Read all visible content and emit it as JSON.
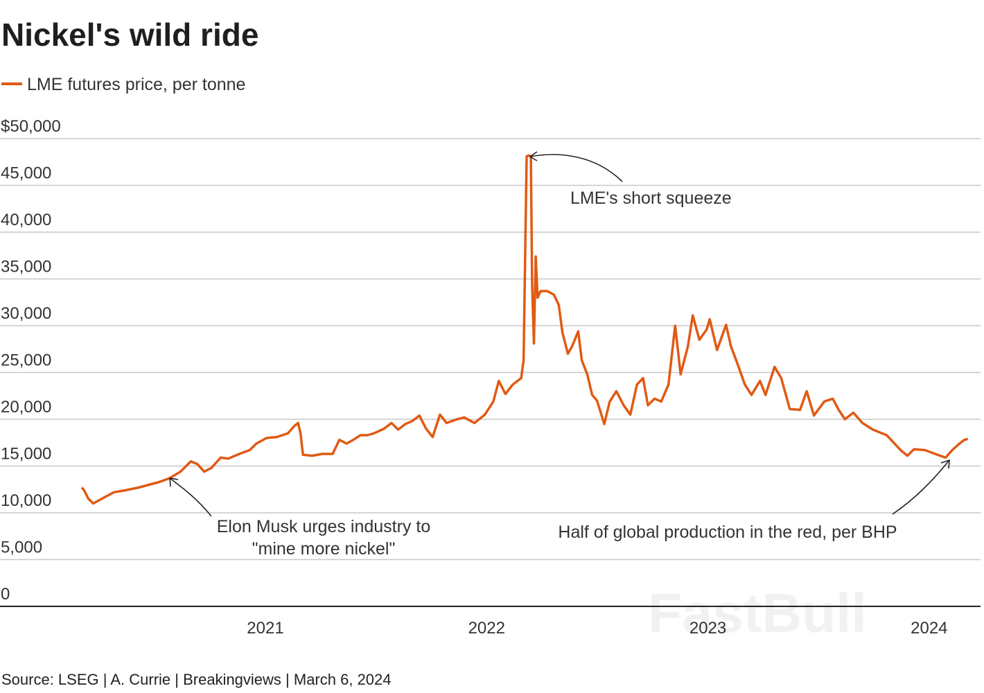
{
  "title": "Nickel's wild ride",
  "source": "Source: LSEG | A. Currie | Breakingviews | March 6, 2024",
  "watermark": "FastBull",
  "colors": {
    "series": "#e05a14",
    "grid": "#c8c8c8",
    "baseline": "#222222"
  },
  "chart_data": {
    "type": "line",
    "title": "Nickel's wild ride",
    "xlabel": "",
    "ylabel": "",
    "ylim": [
      0,
      50000
    ],
    "xlim": [
      "2020-03-01",
      "2024-03-06"
    ],
    "grid": true,
    "legend_placement": "top-left",
    "y_ticks": [
      "$50,000",
      "45,000",
      "40,000",
      "35,000",
      "30,000",
      "25,000",
      "20,000",
      "15,000",
      "10,000",
      "5,000",
      "0"
    ],
    "y_tick_values": [
      50000,
      45000,
      40000,
      35000,
      30000,
      25000,
      20000,
      15000,
      10000,
      5000,
      0
    ],
    "x_ticks": [
      "2021",
      "2022",
      "2023",
      "2024"
    ],
    "series": [
      {
        "name": "LME futures price, per tonne",
        "points": [
          [
            "2020-03-04",
            12700
          ],
          [
            "2020-03-08",
            12400
          ],
          [
            "2020-03-15",
            11500
          ],
          [
            "2020-03-23",
            11000
          ],
          [
            "2020-04-09",
            11600
          ],
          [
            "2020-04-26",
            12200
          ],
          [
            "2020-05-14",
            12400
          ],
          [
            "2020-06-06",
            12700
          ],
          [
            "2020-06-23",
            13000
          ],
          [
            "2020-07-10",
            13300
          ],
          [
            "2020-07-27",
            13700
          ],
          [
            "2020-08-14",
            14400
          ],
          [
            "2020-08-31",
            15500
          ],
          [
            "2020-09-11",
            15200
          ],
          [
            "2020-09-22",
            14400
          ],
          [
            "2020-10-04",
            14800
          ],
          [
            "2020-10-19",
            15900
          ],
          [
            "2020-11-01",
            15800
          ],
          [
            "2020-11-19",
            16300
          ],
          [
            "2020-12-06",
            16700
          ],
          [
            "2020-12-17",
            17400
          ],
          [
            "2021-01-03",
            18000
          ],
          [
            "2021-01-20",
            18100
          ],
          [
            "2021-02-07",
            18500
          ],
          [
            "2021-02-18",
            19300
          ],
          [
            "2021-02-24",
            19600
          ],
          [
            "2021-02-28",
            18500
          ],
          [
            "2021-03-04",
            16200
          ],
          [
            "2021-03-19",
            16100
          ],
          [
            "2021-04-05",
            16300
          ],
          [
            "2021-04-22",
            16300
          ],
          [
            "2021-05-03",
            17800
          ],
          [
            "2021-05-15",
            17400
          ],
          [
            "2021-05-26",
            17800
          ],
          [
            "2021-06-07",
            18300
          ],
          [
            "2021-06-18",
            18300
          ],
          [
            "2021-06-29",
            18500
          ],
          [
            "2021-07-16",
            19000
          ],
          [
            "2021-07-28",
            19600
          ],
          [
            "2021-08-08",
            18900
          ],
          [
            "2021-08-20",
            19500
          ],
          [
            "2021-08-31",
            19800
          ],
          [
            "2021-09-12",
            20400
          ],
          [
            "2021-09-23",
            19000
          ],
          [
            "2021-10-04",
            18100
          ],
          [
            "2021-10-16",
            20500
          ],
          [
            "2021-10-27",
            19600
          ],
          [
            "2021-11-13",
            20000
          ],
          [
            "2021-11-25",
            20200
          ],
          [
            "2021-12-12",
            19600
          ],
          [
            "2021-12-29",
            20500
          ],
          [
            "2022-01-12",
            21900
          ],
          [
            "2022-01-21",
            24100
          ],
          [
            "2022-02-01",
            22700
          ],
          [
            "2022-02-13",
            23700
          ],
          [
            "2022-02-27",
            24400
          ],
          [
            "2022-03-03",
            26300
          ],
          [
            "2022-03-08",
            48100
          ],
          [
            "2022-03-11",
            48200
          ],
          [
            "2022-03-15",
            48100
          ],
          [
            "2022-03-17",
            34400
          ],
          [
            "2022-03-20",
            28100
          ],
          [
            "2022-03-23",
            37400
          ],
          [
            "2022-03-26",
            33000
          ],
          [
            "2022-03-31",
            33700
          ],
          [
            "2022-04-11",
            33700
          ],
          [
            "2022-04-22",
            33300
          ],
          [
            "2022-04-30",
            32200
          ],
          [
            "2022-05-06",
            29300
          ],
          [
            "2022-05-15",
            27000
          ],
          [
            "2022-05-22",
            27800
          ],
          [
            "2022-06-01",
            29400
          ],
          [
            "2022-06-07",
            26300
          ],
          [
            "2022-06-16",
            24800
          ],
          [
            "2022-06-24",
            22600
          ],
          [
            "2022-07-02",
            22000
          ],
          [
            "2022-07-14",
            19500
          ],
          [
            "2022-07-23",
            21900
          ],
          [
            "2022-08-03",
            23000
          ],
          [
            "2022-08-15",
            21500
          ],
          [
            "2022-08-26",
            20500
          ],
          [
            "2022-09-06",
            23700
          ],
          [
            "2022-09-16",
            24400
          ],
          [
            "2022-09-24",
            21500
          ],
          [
            "2022-10-05",
            22200
          ],
          [
            "2022-10-16",
            21900
          ],
          [
            "2022-10-28",
            23700
          ],
          [
            "2022-11-08",
            30000
          ],
          [
            "2022-11-17",
            24800
          ],
          [
            "2022-11-29",
            27800
          ],
          [
            "2022-12-07",
            31100
          ],
          [
            "2022-12-18",
            28500
          ],
          [
            "2022-12-30",
            29600
          ],
          [
            "2023-01-04",
            30700
          ],
          [
            "2023-01-16",
            27400
          ],
          [
            "2023-01-31",
            30100
          ],
          [
            "2023-02-08",
            27800
          ],
          [
            "2023-02-19",
            25900
          ],
          [
            "2023-03-03",
            23700
          ],
          [
            "2023-03-14",
            22600
          ],
          [
            "2023-03-28",
            24100
          ],
          [
            "2023-04-06",
            22600
          ],
          [
            "2023-04-21",
            25600
          ],
          [
            "2023-05-02",
            24400
          ],
          [
            "2023-05-16",
            21100
          ],
          [
            "2023-06-02",
            21000
          ],
          [
            "2023-06-13",
            23000
          ],
          [
            "2023-06-25",
            20400
          ],
          [
            "2023-07-12",
            21900
          ],
          [
            "2023-07-26",
            22200
          ],
          [
            "2023-08-04",
            21100
          ],
          [
            "2023-08-15",
            20000
          ],
          [
            "2023-08-29",
            20700
          ],
          [
            "2023-09-13",
            19600
          ],
          [
            "2023-09-30",
            18900
          ],
          [
            "2023-10-23",
            18300
          ],
          [
            "2023-11-15",
            16700
          ],
          [
            "2023-11-26",
            16100
          ],
          [
            "2023-12-07",
            16800
          ],
          [
            "2023-12-25",
            16700
          ],
          [
            "2024-01-11",
            16300
          ],
          [
            "2024-01-28",
            15900
          ],
          [
            "2024-02-08",
            16700
          ],
          [
            "2024-02-20",
            17400
          ],
          [
            "2024-02-28",
            17800
          ],
          [
            "2024-03-05",
            17900
          ]
        ]
      }
    ],
    "annotations": [
      {
        "text": "LME's short squeeze",
        "date": "2022-03-11",
        "value": 48200
      },
      {
        "text_lines": [
          "Elon Musk urges industry to",
          "\"mine more nickel\""
        ],
        "date": "2020-07-27",
        "value": 13700
      },
      {
        "text": "Half of global production in the red, per BHP",
        "date": "2024-02-08",
        "value": 15900
      }
    ]
  }
}
